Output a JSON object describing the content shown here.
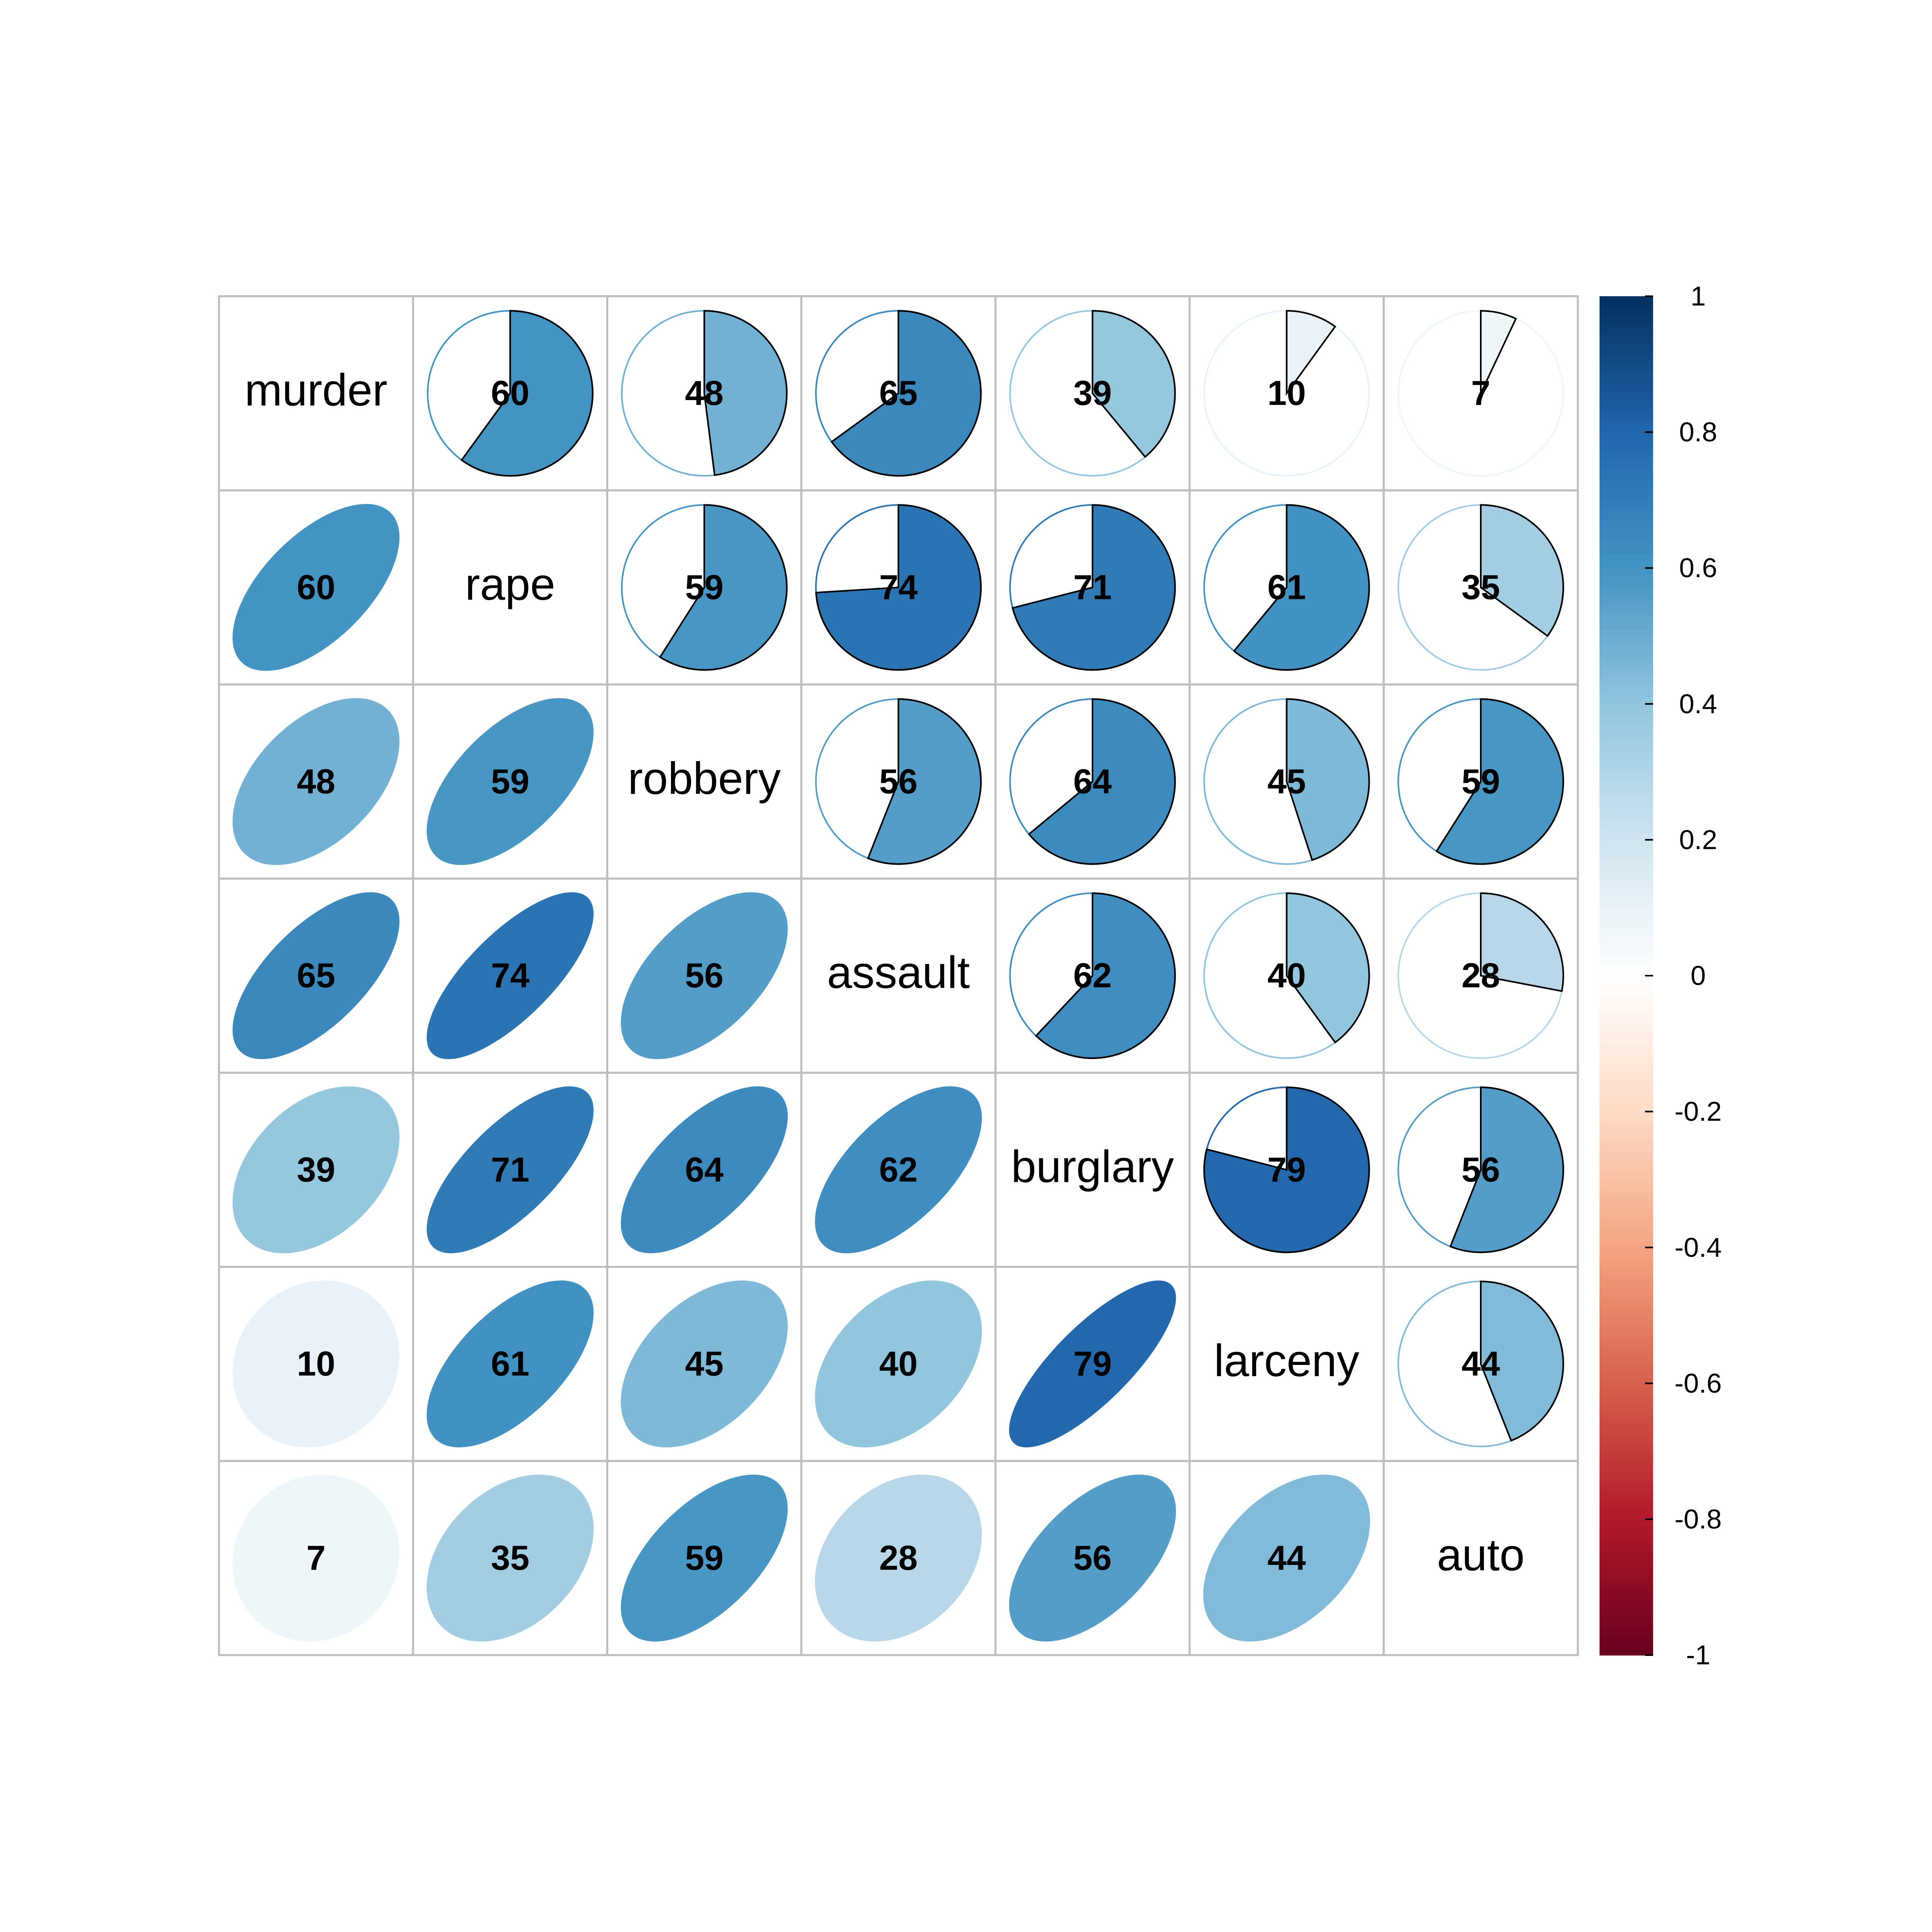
{
  "chart_data": {
    "type": "corrplot",
    "variables": [
      "murder",
      "rape",
      "robbery",
      "assault",
      "burglary",
      "larceny",
      "auto"
    ],
    "values": [
      [
        null,
        0.6,
        0.48,
        0.65,
        0.39,
        0.1,
        0.07
      ],
      [
        0.6,
        null,
        0.59,
        0.74,
        0.71,
        0.61,
        0.35
      ],
      [
        0.48,
        0.59,
        null,
        0.56,
        0.64,
        0.45,
        0.59
      ],
      [
        0.65,
        0.74,
        0.56,
        null,
        0.62,
        0.4,
        0.28
      ],
      [
        0.39,
        0.71,
        0.64,
        0.62,
        null,
        0.79,
        0.56
      ],
      [
        0.1,
        0.61,
        0.45,
        0.4,
        0.79,
        null,
        0.44
      ],
      [
        0.07,
        0.35,
        0.59,
        0.28,
        0.56,
        0.44,
        null
      ]
    ],
    "value_labels": [
      [
        null,
        "60",
        "48",
        "65",
        "39",
        "10",
        "7"
      ],
      [
        "60",
        null,
        "59",
        "74",
        "71",
        "61",
        "35"
      ],
      [
        "48",
        "59",
        null,
        "56",
        "64",
        "45",
        "59"
      ],
      [
        "65",
        "74",
        "56",
        null,
        "62",
        "40",
        "28"
      ],
      [
        "39",
        "71",
        "64",
        "62",
        null,
        "79",
        "56"
      ],
      [
        "10",
        "61",
        "45",
        "40",
        "79",
        null,
        "44"
      ],
      [
        "7",
        "35",
        "59",
        "28",
        "56",
        "44",
        null
      ]
    ],
    "upper": "pie",
    "lower": "ellipse",
    "ylim": [
      -1,
      1
    ],
    "yticks": [
      -1,
      -0.8,
      -0.6,
      -0.4,
      -0.2,
      0,
      0.2,
      0.4,
      0.6,
      0.8,
      1
    ],
    "colors": [
      "#67001F",
      "#B2182B",
      "#D6604D",
      "#F4A582",
      "#FDDBC7",
      "#FFFFFF",
      "#D1E5F0",
      "#92C5DE",
      "#4393C3",
      "#2166AC",
      "#053061"
    ]
  }
}
